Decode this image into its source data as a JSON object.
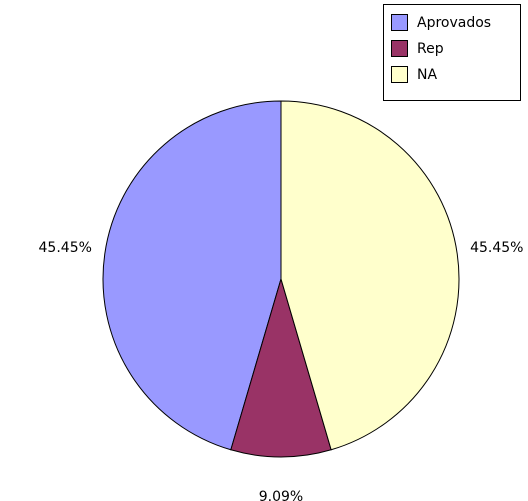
{
  "chart_data": {
    "type": "pie",
    "categories": [
      "Aprovados",
      "Rep",
      "NA"
    ],
    "values": [
      45.45,
      9.09,
      45.45
    ],
    "value_labels": [
      "45.45%",
      "9.09%",
      "45.45%"
    ],
    "colors": [
      "#9999ff",
      "#993366",
      "#ffffcc"
    ],
    "legend": "top-right"
  }
}
